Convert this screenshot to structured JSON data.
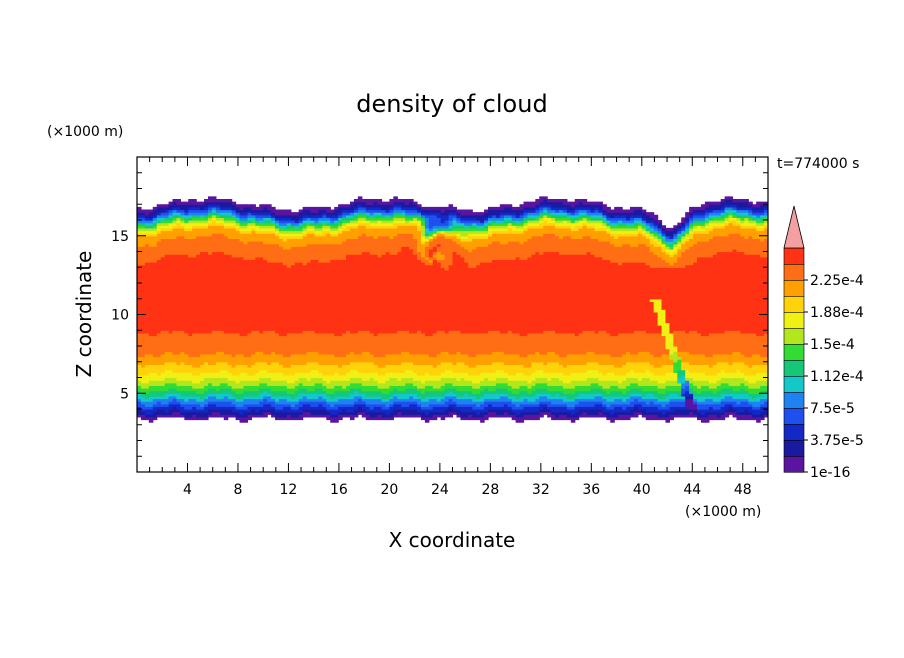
{
  "chart_data": {
    "type": "heatmap",
    "title": "density of cloud",
    "xlabel": "X coordinate",
    "ylabel": "Z coordinate",
    "x_unit": "(×1000 m)",
    "y_unit": "(×1000 m)",
    "time_label": "t=774000 s",
    "xlim": [
      0,
      50
    ],
    "ylim": [
      0,
      20
    ],
    "x_ticks": [
      4,
      8,
      12,
      16,
      20,
      24,
      28,
      32,
      36,
      40,
      44,
      48
    ],
    "y_ticks": [
      5,
      10,
      15
    ],
    "colorbar": {
      "levels": [
        1e-16,
        1.875e-05,
        3.75e-05,
        5.625e-05,
        7.5e-05,
        9.375e-05,
        0.0001125,
        0.00013125,
        0.00015,
        0.00016875,
        0.0001875,
        0.00020625,
        0.000225,
        0.00024375
      ],
      "labels": [
        "1e-16",
        "3.75e-5",
        "7.5e-5",
        "1.12e-4",
        "1.5e-4",
        "1.88e-4",
        "2.25e-4"
      ],
      "colors": [
        "#5a14a0",
        "#1a1aa0",
        "#1428c8",
        "#1e50f0",
        "#1e82f0",
        "#12c8c8",
        "#14c878",
        "#32dc32",
        "#b4e61e",
        "#f0f014",
        "#ffd20a",
        "#ffa000",
        "#ff6e14",
        "#ff3214"
      ],
      "extend_color": "#f4a0a0"
    },
    "field_description": "cloud density field; cloud layer spans roughly z=3.5 to 17 km across the full domain, core values > 2.25e-4 between z≈7 and 14 km, Kelvin-Helmholtz billow near x≈20-27 km at top",
    "profile": {
      "z": [
        3.4,
        3.8,
        4.2,
        4.6,
        5.0,
        5.5,
        6.0,
        6.5,
        7.0,
        7.5,
        8.0,
        9.0,
        13.5,
        14.5,
        15.2,
        15.7,
        16.1,
        16.5,
        17.0
      ],
      "value": [
        2e-06,
        3e-05,
        6e-05,
        9e-05,
        0.00012,
        0.00015,
        0.000175,
        0.000195,
        0.00021,
        0.000225,
        0.000235,
        0.000245,
        0.000245,
        0.00023,
        0.00021,
        0.00016,
        0.0001,
        4e-05,
        1e-06
      ]
    }
  }
}
